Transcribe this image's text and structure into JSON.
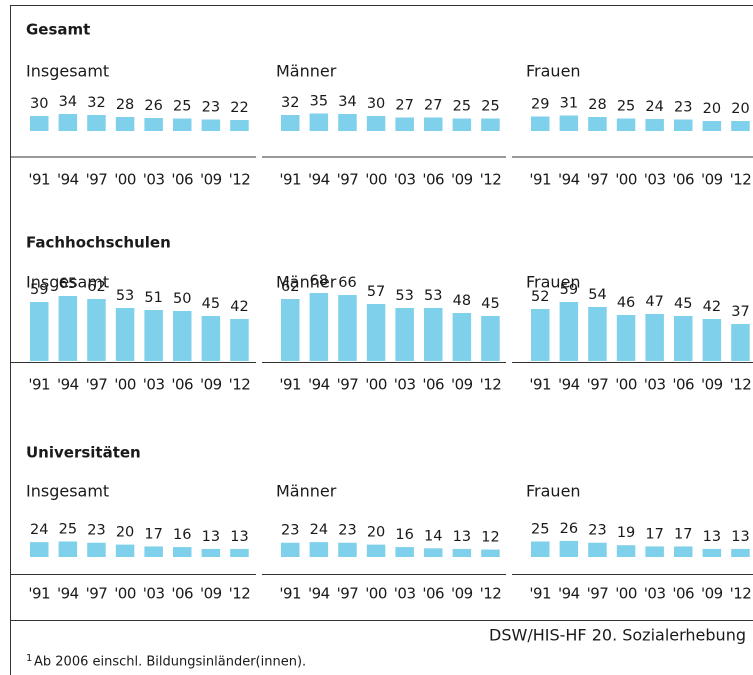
{
  "sections": [
    "Gesamt",
    "Fachhochschulen",
    "Universitäten"
  ],
  "source": "DSW/HIS-HF 20. Sozialerhebung",
  "footnote_mark": "1",
  "footnote": "Ab 2006 einschl. Bildungsinländer(innen).",
  "chart_data": [
    {
      "type": "bar",
      "title": "Insgesamt",
      "color": "#7fd0ea",
      "categories": [
        "'91",
        "'94",
        "'97",
        "'00",
        "'03",
        "'06",
        "'09",
        "'12"
      ],
      "values": [
        30,
        34,
        32,
        28,
        26,
        25,
        23,
        22
      ]
    },
    {
      "type": "bar",
      "title": "Männer",
      "color": "#7fd0ea",
      "categories": [
        "'91",
        "'94",
        "'97",
        "'00",
        "'03",
        "'06",
        "'09",
        "'12"
      ],
      "values": [
        32,
        35,
        34,
        30,
        27,
        27,
        25,
        25
      ]
    },
    {
      "type": "bar",
      "title": "Frauen",
      "color": "#7fd0ea",
      "categories": [
        "'91",
        "'94",
        "'97",
        "'00",
        "'03",
        "'06",
        "'09",
        "'12"
      ],
      "values": [
        29,
        31,
        28,
        25,
        24,
        23,
        20,
        20
      ]
    },
    {
      "type": "bar",
      "title": "Insgesamt",
      "color": "#7fd0ea",
      "categories": [
        "'91",
        "'94",
        "'97",
        "'00",
        "'03",
        "'06",
        "'09",
        "'12"
      ],
      "values": [
        59,
        65,
        62,
        53,
        51,
        50,
        45,
        42
      ]
    },
    {
      "type": "bar",
      "title": "Männer",
      "color": "#7fd0ea",
      "categories": [
        "'91",
        "'94",
        "'97",
        "'00",
        "'03",
        "'06",
        "'09",
        "'12"
      ],
      "values": [
        62,
        68,
        66,
        57,
        53,
        53,
        48,
        45
      ]
    },
    {
      "type": "bar",
      "title": "Frauen",
      "color": "#7fd0ea",
      "categories": [
        "'91",
        "'94",
        "'97",
        "'00",
        "'03",
        "'06",
        "'09",
        "'12"
      ],
      "values": [
        52,
        59,
        54,
        46,
        47,
        45,
        42,
        37
      ]
    },
    {
      "type": "bar",
      "title": "Insgesamt",
      "color": "#7fd0ea",
      "categories": [
        "'91",
        "'94",
        "'97",
        "'00",
        "'03",
        "'06",
        "'09",
        "'12"
      ],
      "values": [
        24,
        25,
        23,
        20,
        17,
        16,
        13,
        13
      ]
    },
    {
      "type": "bar",
      "title": "Männer",
      "color": "#7fd0ea",
      "categories": [
        "'91",
        "'94",
        "'97",
        "'00",
        "'03",
        "'06",
        "'09",
        "'12"
      ],
      "values": [
        23,
        24,
        23,
        20,
        16,
        14,
        13,
        12
      ]
    },
    {
      "type": "bar",
      "title": "Frauen",
      "color": "#7fd0ea",
      "categories": [
        "'91",
        "'94",
        "'97",
        "'00",
        "'03",
        "'06",
        "'09",
        "'12"
      ],
      "values": [
        25,
        26,
        23,
        19,
        17,
        17,
        13,
        13
      ]
    }
  ]
}
